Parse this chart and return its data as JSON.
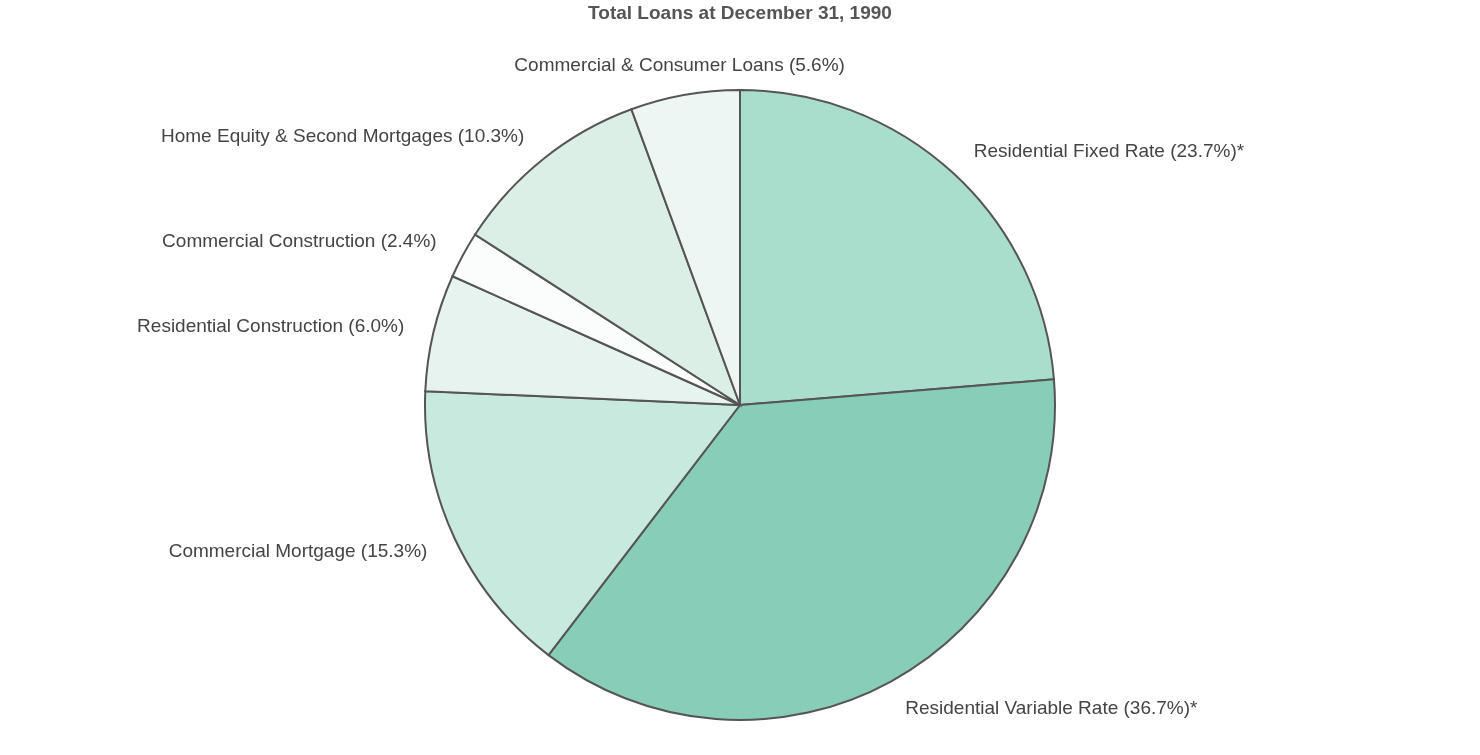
{
  "chart_data": {
    "type": "pie",
    "title": "Total Loans at December 31, 1990",
    "categories": [
      "Residential Fixed Rate (23.7%)*",
      "Residential Variable  Rate (36.7%)*",
      "Commercial Mortgage (15.3%)",
      "Residential Construction (6.0%)",
      "Commercial Construction (2.4%)",
      "Home Equity & Second Mortgages (10.3%)",
      "Commercial & Consumer Loans (5.6%)"
    ],
    "values": [
      23.7,
      36.7,
      15.3,
      6.0,
      2.4,
      10.3,
      5.6
    ],
    "colors": [
      "#a9ddcc",
      "#88cdb8",
      "#c8e9dd",
      "#e6f3ee",
      "#fbfdfc",
      "#dcefe7",
      "#eef6f3"
    ]
  }
}
